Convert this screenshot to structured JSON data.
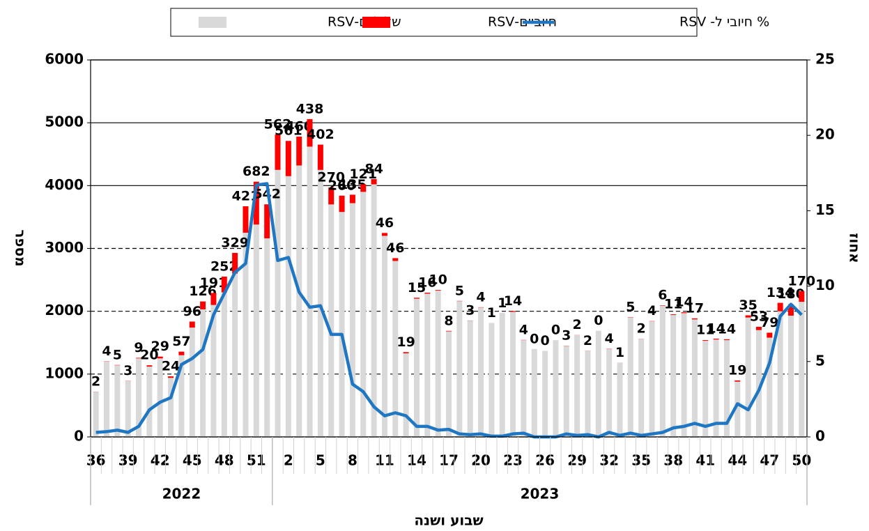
{
  "chart_data": {
    "type": "bar",
    "legend": "top",
    "y_label": "מספר",
    "y2_label": "אחוז",
    "x_label": "שבוע ושנה",
    "years": [
      "2022",
      "2023"
    ],
    "categories": [
      36,
      null,
      null,
      39,
      null,
      null,
      42,
      null,
      null,
      45,
      null,
      null,
      48,
      null,
      null,
      51,
      null,
      null,
      2,
      null,
      null,
      5,
      null,
      null,
      8,
      null,
      null,
      11,
      null,
      null,
      14,
      null,
      null,
      17,
      null,
      null,
      20,
      null,
      null,
      23,
      null,
      null,
      26,
      null,
      null,
      29,
      null,
      null,
      32,
      null,
      null,
      35,
      null,
      null,
      38,
      null,
      null,
      41,
      null,
      null,
      44,
      null,
      null,
      47,
      null,
      null,
      50
    ],
    "series": [
      {
        "name": "שליליים-RSV",
        "color": "#d9d9d9",
        "stack": true,
        "values": [
          718,
          1200,
          1140,
          890,
          1250,
          1120,
          1250,
          940,
          1300,
          1740,
          2030,
          2100,
          2300,
          2600,
          3250,
          3380,
          3160,
          4250,
          4150,
          4320,
          4620,
          4250,
          3700,
          3580,
          3720,
          3900,
          4020,
          3200,
          2800,
          1330,
          2200,
          2280,
          2330,
          1680,
          2160,
          1850,
          2060,
          1810,
          1970,
          1990,
          1540,
          1400,
          1370,
          1540,
          1450,
          1620,
          1370,
          1690,
          1400,
          1180,
          1900,
          1560,
          1840,
          2090,
          1940,
          1970,
          1870,
          1530,
          1550,
          1540,
          880,
          1900,
          1700,
          1580,
          2000,
          1930,
          2150
        ]
      },
      {
        "name": "חיוביים-RSV",
        "color": "#ff0000",
        "stack": true,
        "labels": true,
        "values": [
          2,
          4,
          5,
          3,
          9,
          20,
          29,
          24,
          57,
          96,
          126,
          191,
          252,
          329,
          421,
          682,
          542,
          562,
          561,
          460,
          438,
          402,
          270,
          260,
          135,
          121,
          84,
          46,
          46,
          19,
          15,
          16,
          10,
          8,
          5,
          3,
          4,
          1,
          1,
          14,
          4,
          0,
          0,
          0,
          3,
          2,
          2,
          0,
          4,
          1,
          5,
          2,
          4,
          6,
          11,
          14,
          17,
          11,
          14,
          14,
          19,
          35,
          53,
          79,
          134,
          180,
          170
        ]
      },
      {
        "name": "% חיובי ל- RSV",
        "color": "#1f77c4",
        "type": "line",
        "axis": "y2",
        "values": [
          0.3,
          0.35,
          0.45,
          0.3,
          0.7,
          1.8,
          2.3,
          2.6,
          4.8,
          5.2,
          5.8,
          8.1,
          9.5,
          10.9,
          11.5,
          16.7,
          16.8,
          11.7,
          11.9,
          9.6,
          8.6,
          8.7,
          6.8,
          6.8,
          3.5,
          3.0,
          2.0,
          1.4,
          1.6,
          1.4,
          0.7,
          0.7,
          0.45,
          0.5,
          0.2,
          0.15,
          0.2,
          0.05,
          0.05,
          0.2,
          0.25,
          0,
          0,
          0,
          0.2,
          0.1,
          0.15,
          0,
          0.3,
          0.1,
          0.25,
          0.1,
          0.2,
          0.3,
          0.6,
          0.7,
          0.9,
          0.7,
          0.9,
          0.9,
          2.2,
          1.8,
          3.1,
          4.9,
          8.0,
          8.8,
          8.1
        ]
      }
    ],
    "ylim": [
      0,
      6000
    ],
    "yticks": [
      0,
      1000,
      2000,
      3000,
      4000,
      5000,
      6000
    ],
    "y2lim": [
      0,
      25
    ],
    "y2ticks": [
      0,
      5,
      10,
      15,
      20,
      25
    ],
    "grid": true
  }
}
